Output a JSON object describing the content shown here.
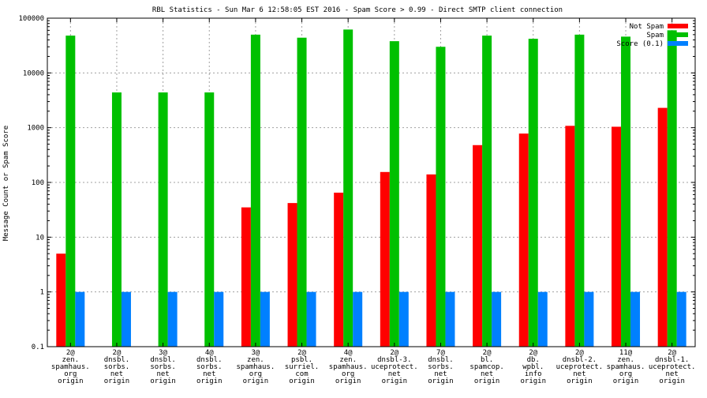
{
  "chart_data": {
    "type": "bar",
    "title": "RBL Statistics - Sun Mar  6 12:58:05 EST 2016 - Spam Score > 0.99 - Direct SMTP client connection",
    "ylabel": "Message Count or Spam Score",
    "xlabel": "",
    "yscale": "log",
    "ylim": [
      0.1,
      100000
    ],
    "yticks": [
      {
        "value": 0.1,
        "label": "0.1"
      },
      {
        "value": 1,
        "label": "1"
      },
      {
        "value": 10,
        "label": "10"
      },
      {
        "value": 100,
        "label": "100"
      },
      {
        "value": 1000,
        "label": "1000"
      },
      {
        "value": 10000,
        "label": "10000"
      },
      {
        "value": 100000,
        "label": "100000"
      }
    ],
    "grid": true,
    "legend_position": "top-right",
    "categories": [
      [
        "2@",
        "zen.",
        "spamhaus.",
        "org",
        "origin"
      ],
      [
        "2@",
        "dnsbl.",
        "sorbs.",
        "net",
        "origin"
      ],
      [
        "3@",
        "dnsbl.",
        "sorbs.",
        "net",
        "origin"
      ],
      [
        "4@",
        "dnsbl.",
        "sorbs.",
        "net",
        "origin"
      ],
      [
        "3@",
        "zen.",
        "spamhaus.",
        "org",
        "origin"
      ],
      [
        "2@",
        "psbl.",
        "surriel.",
        "com",
        "origin"
      ],
      [
        "4@",
        "zen.",
        "spamhaus.",
        "org",
        "origin"
      ],
      [
        "2@",
        "dnsbl-3.",
        "uceprotect.",
        "net",
        "origin"
      ],
      [
        "7@",
        "dnsbl.",
        "sorbs.",
        "net",
        "origin"
      ],
      [
        "2@",
        "bl.",
        "spamcop.",
        "net",
        "origin"
      ],
      [
        "2@",
        "db.",
        "wpbl.",
        "info",
        "origin"
      ],
      [
        "2@",
        "dnsbl-2.",
        "uceprotect.",
        "net",
        "origin"
      ],
      [
        "11@",
        "zen.",
        "spamhaus.",
        "org",
        "origin"
      ],
      [
        "2@",
        "dnsbl-1.",
        "uceprotect.",
        "net",
        "origin"
      ]
    ],
    "series": [
      {
        "name": "Not Spam",
        "color": "#ff0000",
        "values": [
          5,
          null,
          null,
          null,
          35,
          42,
          65,
          155,
          140,
          480,
          780,
          1080,
          1040,
          2300
        ]
      },
      {
        "name": "Spam",
        "color": "#00c000",
        "values": [
          48000,
          4400,
          4400,
          4400,
          50000,
          44000,
          62000,
          38000,
          30000,
          48000,
          42000,
          50000,
          46000,
          60000
        ]
      },
      {
        "name": "Score (0.1)",
        "color": "#0080ff",
        "values": [
          1,
          1,
          1,
          1,
          1,
          1,
          1,
          1,
          1,
          1,
          1,
          1,
          1,
          1
        ]
      }
    ]
  }
}
